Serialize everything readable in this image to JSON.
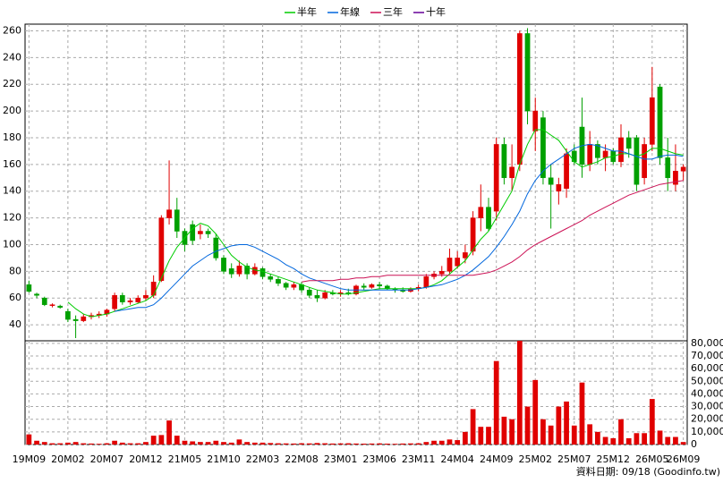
{
  "chart_data": {
    "type": "candlestick",
    "categories": [
      "19M09",
      null,
      null,
      null,
      null,
      "20M02",
      null,
      null,
      null,
      null,
      "20M07",
      null,
      null,
      null,
      null,
      "20M12",
      null,
      null,
      null,
      null,
      "21M05",
      null,
      null,
      null,
      null,
      "21M10",
      null,
      null,
      null,
      null,
      "22M03",
      null,
      null,
      null,
      null,
      "22M08",
      null,
      null,
      null,
      null,
      "23M01",
      null,
      null,
      null,
      null,
      "23M06",
      null,
      null,
      null,
      null,
      "23M11",
      null,
      null,
      null,
      null,
      "24M04",
      null,
      null,
      null,
      null,
      "24M09",
      null,
      null,
      null,
      null,
      "25M02",
      null,
      null,
      null,
      null,
      "25M07",
      null,
      null,
      null,
      null,
      "25M12",
      null,
      null,
      null,
      null,
      "26M05",
      null,
      null,
      null,
      "26M09"
    ],
    "open": [
      70,
      63,
      60,
      55,
      54,
      50,
      44,
      43,
      46,
      47,
      48,
      52,
      62,
      57,
      57,
      60,
      62,
      73,
      120,
      126,
      110,
      115,
      108,
      110,
      105,
      90,
      82,
      78,
      84,
      78,
      82,
      76,
      74,
      71,
      68,
      70,
      66,
      62,
      60,
      64,
      63,
      64,
      63,
      69,
      68,
      70,
      69,
      67,
      66,
      65,
      67,
      68,
      76,
      78,
      80,
      84,
      90,
      95,
      120,
      128,
      125,
      175,
      150,
      160,
      258,
      185,
      195,
      150,
      140,
      142,
      170,
      188,
      160,
      175,
      165,
      170,
      162,
      180,
      180,
      150,
      175,
      218,
      165,
      145,
      155
    ],
    "high": [
      73,
      64,
      61,
      56,
      55,
      52,
      47,
      48,
      49,
      50,
      52,
      64,
      64,
      60,
      62,
      66,
      77,
      122,
      163,
      135,
      112,
      118,
      115,
      112,
      108,
      92,
      86,
      88,
      86,
      86,
      83,
      78,
      76,
      72,
      72,
      72,
      68,
      66,
      66,
      66,
      66,
      67,
      70,
      71,
      71,
      72,
      70,
      68,
      68,
      68,
      70,
      78,
      80,
      84,
      97,
      95,
      100,
      125,
      145,
      135,
      180,
      180,
      175,
      260,
      262,
      210,
      200,
      160,
      150,
      172,
      175,
      210,
      185,
      178,
      175,
      172,
      190,
      185,
      182,
      180,
      233,
      220,
      180,
      175,
      160
    ],
    "low": [
      64,
      60,
      54,
      53,
      52,
      42,
      30,
      42,
      44,
      45,
      46,
      50,
      55,
      55,
      56,
      58,
      60,
      72,
      115,
      105,
      95,
      100,
      104,
      105,
      88,
      78,
      75,
      76,
      74,
      77,
      74,
      72,
      69,
      66,
      66,
      64,
      60,
      57,
      59,
      62,
      61,
      62,
      62,
      66,
      67,
      67,
      66,
      64,
      64,
      64,
      65,
      67,
      74,
      76,
      78,
      82,
      86,
      92,
      110,
      110,
      118,
      145,
      140,
      155,
      190,
      170,
      145,
      112,
      130,
      135,
      160,
      150,
      155,
      160,
      155,
      160,
      158,
      165,
      140,
      145,
      170,
      160,
      140,
      140,
      148
    ],
    "close": [
      65,
      62,
      55,
      55,
      53,
      44,
      43,
      46,
      47,
      48,
      51,
      62,
      57,
      58,
      60,
      62,
      72,
      120,
      126,
      110,
      100,
      103,
      110,
      108,
      90,
      80,
      78,
      84,
      78,
      83,
      76,
      74,
      71,
      68,
      70,
      66,
      62,
      60,
      64,
      63,
      64,
      63,
      69,
      68,
      70,
      69,
      67,
      66,
      65,
      67,
      68,
      76,
      78,
      80,
      90,
      90,
      94,
      120,
      128,
      112,
      175,
      150,
      158,
      258,
      200,
      200,
      150,
      145,
      145,
      168,
      162,
      160,
      175,
      165,
      170,
      162,
      180,
      172,
      145,
      175,
      210,
      165,
      150,
      155,
      158
    ],
    "up_color": "#e00000",
    "down_color": "#00a000",
    "ylim": [
      28,
      265
    ],
    "yticks": [
      40,
      60,
      80,
      100,
      120,
      140,
      160,
      180,
      200,
      220,
      240,
      260
    ],
    "grid": true,
    "series": [
      {
        "name": "半年",
        "color": "#00cc00",
        "values": [
          null,
          null,
          null,
          null,
          null,
          57,
          52,
          48,
          46,
          47,
          48,
          50,
          52,
          54,
          56,
          58,
          62,
          75,
          88,
          98,
          105,
          112,
          116,
          114,
          108,
          100,
          92,
          87,
          83,
          81,
          80,
          78,
          76,
          74,
          72,
          70,
          68,
          66,
          65,
          64,
          63,
          63,
          64,
          65,
          66,
          67,
          67,
          67,
          67,
          67,
          67,
          68,
          70,
          73,
          78,
          83,
          88,
          96,
          104,
          110,
          120,
          130,
          140,
          160,
          175,
          186,
          186,
          182,
          178,
          170,
          162,
          158,
          160,
          162,
          165,
          166,
          168,
          168,
          166,
          168,
          172,
          172,
          170,
          168,
          167
        ]
      },
      {
        "name": "年線",
        "color": "#0066dd",
        "values": [
          null,
          null,
          null,
          null,
          null,
          null,
          null,
          null,
          null,
          null,
          null,
          50,
          51,
          52,
          53,
          53,
          55,
          60,
          66,
          72,
          78,
          84,
          88,
          92,
          95,
          97,
          99,
          100,
          100,
          98,
          95,
          92,
          89,
          85,
          82,
          78,
          75,
          73,
          71,
          69,
          67,
          66,
          66,
          66,
          66,
          66,
          66,
          66,
          66,
          66,
          67,
          68,
          69,
          70,
          72,
          74,
          77,
          81,
          86,
          91,
          98,
          106,
          115,
          125,
          138,
          148,
          155,
          160,
          164,
          168,
          172,
          174,
          175,
          174,
          172,
          170,
          170,
          168,
          166,
          164,
          164,
          166,
          167,
          167,
          166
        ]
      },
      {
        "name": "三年",
        "color": "#cc1155",
        "values": [
          null,
          null,
          null,
          null,
          null,
          null,
          null,
          null,
          null,
          null,
          null,
          null,
          null,
          null,
          null,
          null,
          null,
          null,
          null,
          null,
          null,
          null,
          null,
          null,
          null,
          null,
          null,
          null,
          null,
          null,
          null,
          null,
          null,
          null,
          null,
          72,
          73,
          73,
          73,
          73,
          74,
          74,
          75,
          75,
          76,
          76,
          77,
          77,
          77,
          77,
          77,
          77,
          77,
          77,
          77,
          77,
          77,
          77,
          78,
          79,
          81,
          84,
          87,
          91,
          96,
          100,
          103,
          106,
          109,
          112,
          115,
          118,
          122,
          125,
          128,
          131,
          134,
          137,
          139,
          141,
          143,
          145,
          146,
          147,
          148
        ]
      },
      {
        "name": "十年",
        "color": "#660099",
        "values": [
          null,
          null,
          null,
          null,
          null,
          null,
          null,
          null,
          null,
          null,
          null,
          null,
          null,
          null,
          null,
          null,
          null,
          null,
          null,
          null,
          null,
          null,
          null,
          null,
          null,
          null,
          null,
          null,
          null,
          null,
          null,
          null,
          null,
          null,
          null,
          null,
          null,
          null,
          null,
          null,
          null,
          null,
          null,
          null,
          null,
          null,
          null,
          null,
          null,
          null,
          null,
          null,
          null,
          null,
          null,
          null,
          null,
          null,
          null,
          null,
          null,
          null,
          null,
          null,
          null,
          null,
          null,
          null,
          null,
          null,
          null,
          null,
          null,
          null,
          null,
          null,
          null,
          null,
          null,
          null,
          null,
          null,
          null,
          null,
          null
        ]
      }
    ],
    "volume": {
      "color": "#e00000",
      "values": [
        8000,
        3000,
        2000,
        1000,
        1000,
        1500,
        2000,
        1000,
        800,
        600,
        1000,
        3000,
        1500,
        1000,
        1000,
        2000,
        7000,
        7500,
        19000,
        7000,
        3000,
        2500,
        2000,
        2000,
        3000,
        2000,
        1500,
        4000,
        2000,
        1500,
        1500,
        1200,
        1000,
        900,
        800,
        1000,
        900,
        1200,
        1000,
        800,
        900,
        1000,
        800,
        700,
        800,
        900,
        700,
        600,
        800,
        900,
        1000,
        2000,
        3000,
        3000,
        4000,
        3500,
        10000,
        28000,
        14000,
        14000,
        66000,
        22000,
        20000,
        82000,
        30000,
        51000,
        20000,
        15000,
        30000,
        34000,
        15000,
        49000,
        16000,
        10000,
        6000,
        5000,
        20000,
        5000,
        9000,
        9000,
        36000,
        11000,
        6000,
        6000,
        2000
      ],
      "ylim": [
        0,
        82000
      ],
      "yticks": [
        0,
        {
          "value": 10000,
          "label": "10,000"
        },
        {
          "value": 20000,
          "label": "20,000"
        },
        {
          "value": 30000,
          "label": "30,000"
        },
        {
          "value": 40000,
          "label": "40,000"
        },
        {
          "value": 50000,
          "label": "50,000"
        },
        {
          "value": 60000,
          "label": "60,000"
        },
        {
          "value": 70000,
          "label": "70,000"
        },
        {
          "value": 80000,
          "label": "80,000"
        }
      ]
    },
    "source": "資料日期: 09/18 (Goodinfo.tw)"
  }
}
